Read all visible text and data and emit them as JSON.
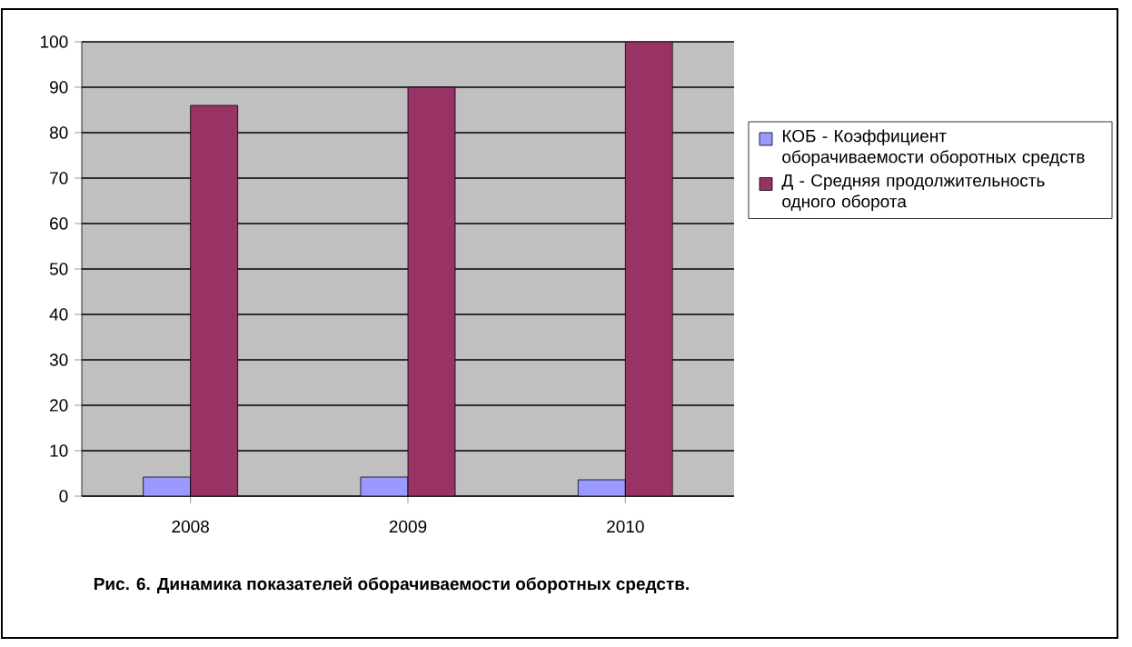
{
  "chart_data": {
    "type": "bar",
    "categories": [
      "2008",
      "2009",
      "2010"
    ],
    "series": [
      {
        "name": "КОБ - Коэффициент оборачиваемости оборотных средств",
        "color": "#9999ff",
        "values": [
          4.2,
          4.2,
          3.6
        ]
      },
      {
        "name": "Д - Средняя продолжительность одного оборота",
        "color": "#993366",
        "values": [
          86,
          90,
          100
        ]
      }
    ],
    "ylim": [
      0,
      100
    ],
    "yticks": [
      0,
      10,
      20,
      30,
      40,
      50,
      60,
      70,
      80,
      90,
      100
    ],
    "grid": "y",
    "legend": "right",
    "annotations": [
      "Рис. 6. Динамика показателей оборачиваемости оборотных средств."
    ]
  }
}
